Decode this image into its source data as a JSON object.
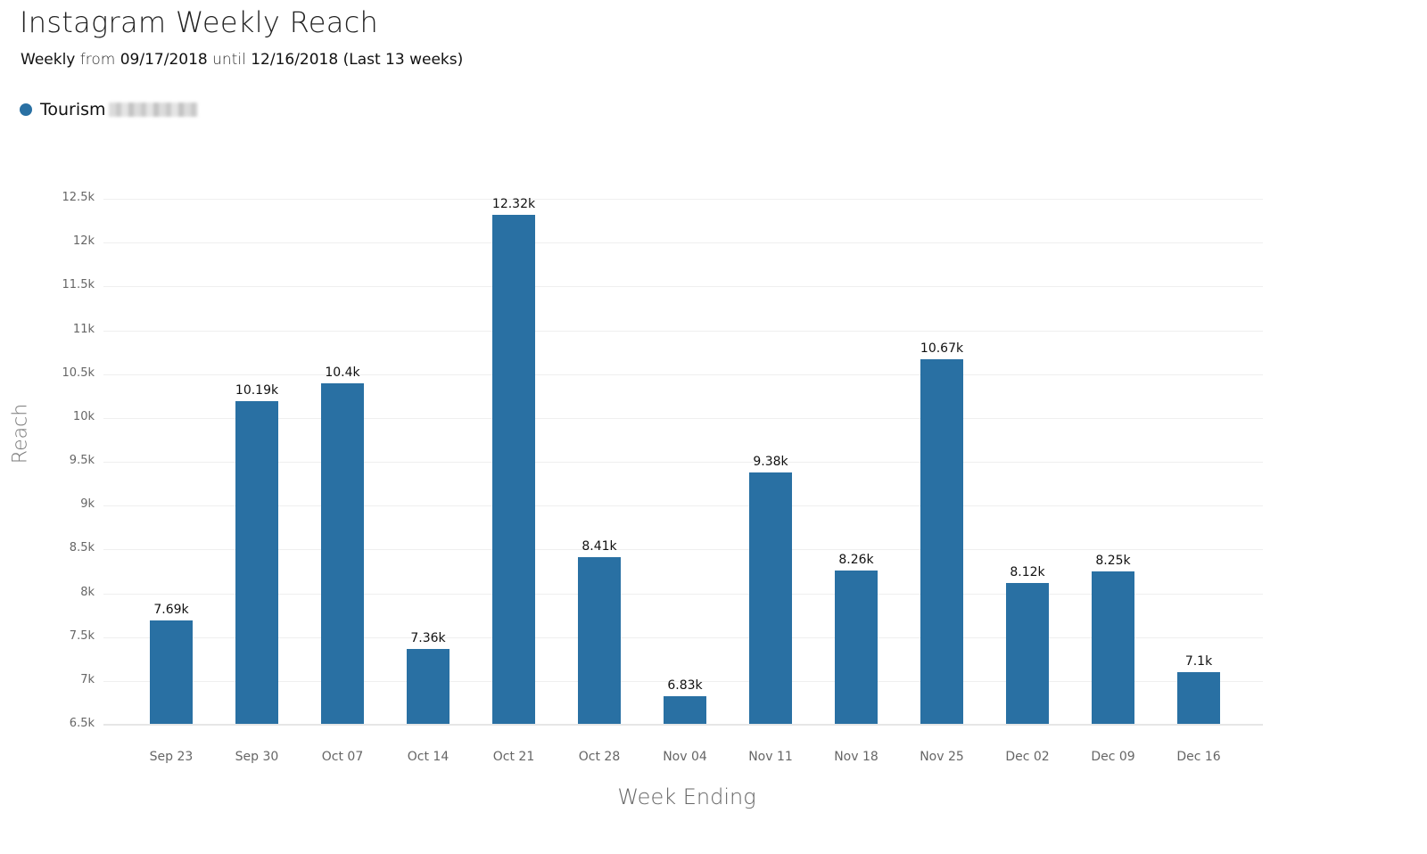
{
  "header": {
    "title": "Instagram Weekly Reach",
    "subtitle_prefix": "Weekly",
    "subtitle_from": "from",
    "subtitle_start": "09/17/2018",
    "subtitle_until": "until",
    "subtitle_end": "12/16/2018",
    "subtitle_range": "(Last 13 weeks)"
  },
  "legend": {
    "label": "Tourism",
    "color": "#2970a3",
    "redacted": true
  },
  "colors": {
    "bar": "#2970a3",
    "grid": "#efefef",
    "axis_text": "#666666"
  },
  "chart_data": {
    "type": "bar",
    "title": "Instagram Weekly Reach",
    "subtitle": "Weekly from 09/17/2018 until 12/16/2018 (Last 13 weeks)",
    "xlabel": "Week Ending",
    "ylabel": "Reach",
    "ylim": [
      6500,
      12500
    ],
    "yticks": [
      "6.5k",
      "7k",
      "7.5k",
      "8k",
      "8.5k",
      "9k",
      "9.5k",
      "10k",
      "10.5k",
      "11k",
      "11.5k",
      "12k",
      "12.5k"
    ],
    "ytick_values": [
      6500,
      7000,
      7500,
      8000,
      8500,
      9000,
      9500,
      10000,
      10500,
      11000,
      11500,
      12000,
      12500
    ],
    "grid": true,
    "legend_position": "top-left",
    "categories": [
      "Sep 23",
      "Sep 30",
      "Oct 07",
      "Oct 14",
      "Oct 21",
      "Oct 28",
      "Nov 04",
      "Nov 11",
      "Nov 18",
      "Nov 25",
      "Dec 02",
      "Dec 09",
      "Dec 16"
    ],
    "series": [
      {
        "name": "Tourism",
        "color": "#2970a3",
        "values": [
          7690,
          10190,
          10400,
          7360,
          12320,
          8410,
          6830,
          9380,
          8260,
          10670,
          8120,
          8250,
          7100
        ],
        "labels": [
          "7.69k",
          "10.19k",
          "10.4k",
          "7.36k",
          "12.32k",
          "8.41k",
          "6.83k",
          "9.38k",
          "8.26k",
          "10.67k",
          "8.12k",
          "8.25k",
          "7.1k"
        ]
      }
    ]
  }
}
